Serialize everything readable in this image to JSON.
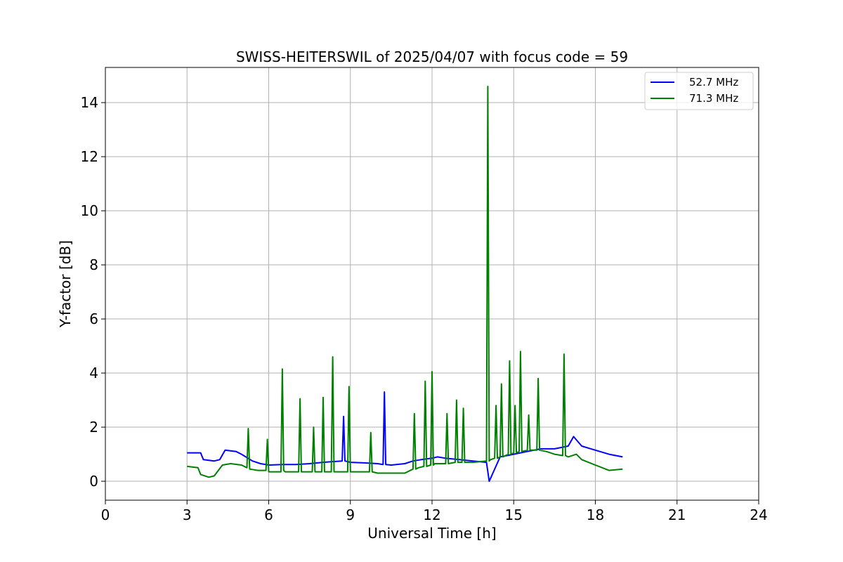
{
  "chart_data": {
    "type": "line",
    "title": "SWISS-HEITERSWIL of 2025/04/07 with focus code = 59",
    "xlabel": "Universal Time [h]",
    "ylabel": "Y-factor [dB]",
    "xlim": [
      0,
      24
    ],
    "ylim": [
      -0.7,
      15.3
    ],
    "xticks": [
      0,
      3,
      6,
      9,
      12,
      15,
      18,
      21,
      24
    ],
    "yticks": [
      0,
      2,
      4,
      6,
      8,
      10,
      12,
      14
    ],
    "grid": true,
    "legend_position": "top-right",
    "series": [
      {
        "name": "52.7 MHz",
        "color": "#0000ff",
        "x": [
          3.0,
          3.5,
          3.6,
          4.0,
          4.2,
          4.4,
          4.8,
          5.0,
          5.4,
          5.7,
          6.0,
          6.5,
          7.0,
          7.5,
          8.0,
          8.3,
          8.7,
          8.75,
          8.8,
          9.0,
          9.5,
          10.0,
          10.2,
          10.25,
          10.3,
          10.5,
          11.0,
          11.3,
          11.6,
          12.0,
          12.2,
          12.5,
          13.0,
          13.5,
          14.0,
          14.1,
          14.5,
          15.0,
          15.5,
          16.0,
          16.5,
          17.0,
          17.2,
          17.5,
          18.0,
          18.5,
          19.0
        ],
        "y": [
          1.05,
          1.05,
          0.8,
          0.75,
          0.8,
          1.15,
          1.1,
          1.0,
          0.75,
          0.65,
          0.6,
          0.62,
          0.62,
          0.65,
          0.7,
          0.72,
          0.75,
          2.4,
          0.75,
          0.7,
          0.68,
          0.65,
          0.62,
          3.3,
          0.62,
          0.6,
          0.65,
          0.75,
          0.8,
          0.85,
          0.9,
          0.85,
          0.8,
          0.75,
          0.7,
          0.0,
          0.9,
          1.0,
          1.1,
          1.2,
          1.2,
          1.3,
          1.65,
          1.3,
          1.15,
          1.0,
          0.9
        ]
      },
      {
        "name": "71.3 MHz",
        "color": "#008000",
        "x": [
          3.0,
          3.4,
          3.5,
          3.8,
          4.0,
          4.3,
          4.6,
          5.0,
          5.2,
          5.25,
          5.3,
          5.6,
          5.9,
          5.95,
          6.0,
          6.45,
          6.5,
          6.55,
          6.6,
          7.1,
          7.15,
          7.2,
          7.6,
          7.65,
          7.7,
          7.95,
          8.0,
          8.05,
          8.3,
          8.35,
          8.4,
          8.9,
          8.95,
          9.0,
          9.7,
          9.75,
          9.8,
          10.0,
          10.5,
          11.0,
          11.3,
          11.35,
          11.4,
          11.5,
          11.7,
          11.75,
          11.8,
          11.95,
          12.0,
          12.05,
          12.1,
          12.5,
          12.55,
          12.6,
          12.85,
          12.9,
          12.95,
          13.1,
          13.15,
          13.2,
          13.5,
          14.0,
          14.05,
          14.1,
          14.15,
          14.3,
          14.35,
          14.4,
          14.5,
          14.55,
          14.6,
          14.8,
          14.85,
          14.9,
          15.0,
          15.05,
          15.1,
          15.2,
          15.25,
          15.3,
          15.5,
          15.55,
          15.6,
          15.85,
          15.9,
          15.95,
          16.2,
          16.5,
          16.8,
          16.85,
          16.9,
          17.0,
          17.3,
          17.5,
          18.0,
          18.5,
          19.0
        ],
        "y": [
          0.55,
          0.5,
          0.25,
          0.15,
          0.2,
          0.6,
          0.65,
          0.6,
          0.5,
          1.95,
          0.45,
          0.4,
          0.4,
          1.55,
          0.35,
          0.35,
          4.15,
          0.4,
          0.35,
          0.35,
          3.05,
          0.35,
          0.35,
          2.0,
          0.35,
          0.35,
          3.1,
          0.35,
          0.35,
          4.6,
          0.35,
          0.35,
          3.5,
          0.35,
          0.35,
          1.8,
          0.35,
          0.3,
          0.3,
          0.3,
          0.45,
          2.5,
          0.45,
          0.5,
          0.55,
          3.7,
          0.55,
          0.6,
          4.05,
          0.6,
          0.65,
          0.65,
          2.5,
          0.65,
          0.7,
          3.0,
          0.7,
          0.7,
          2.7,
          0.7,
          0.7,
          0.75,
          14.6,
          0.75,
          0.8,
          0.85,
          2.8,
          0.85,
          0.9,
          3.6,
          0.9,
          1.0,
          4.45,
          1.0,
          1.05,
          2.8,
          1.05,
          1.1,
          4.8,
          1.1,
          1.15,
          2.45,
          1.15,
          1.15,
          3.8,
          1.15,
          1.1,
          1.0,
          0.95,
          4.7,
          0.95,
          0.9,
          1.0,
          0.8,
          0.6,
          0.4,
          0.45
        ]
      }
    ]
  }
}
